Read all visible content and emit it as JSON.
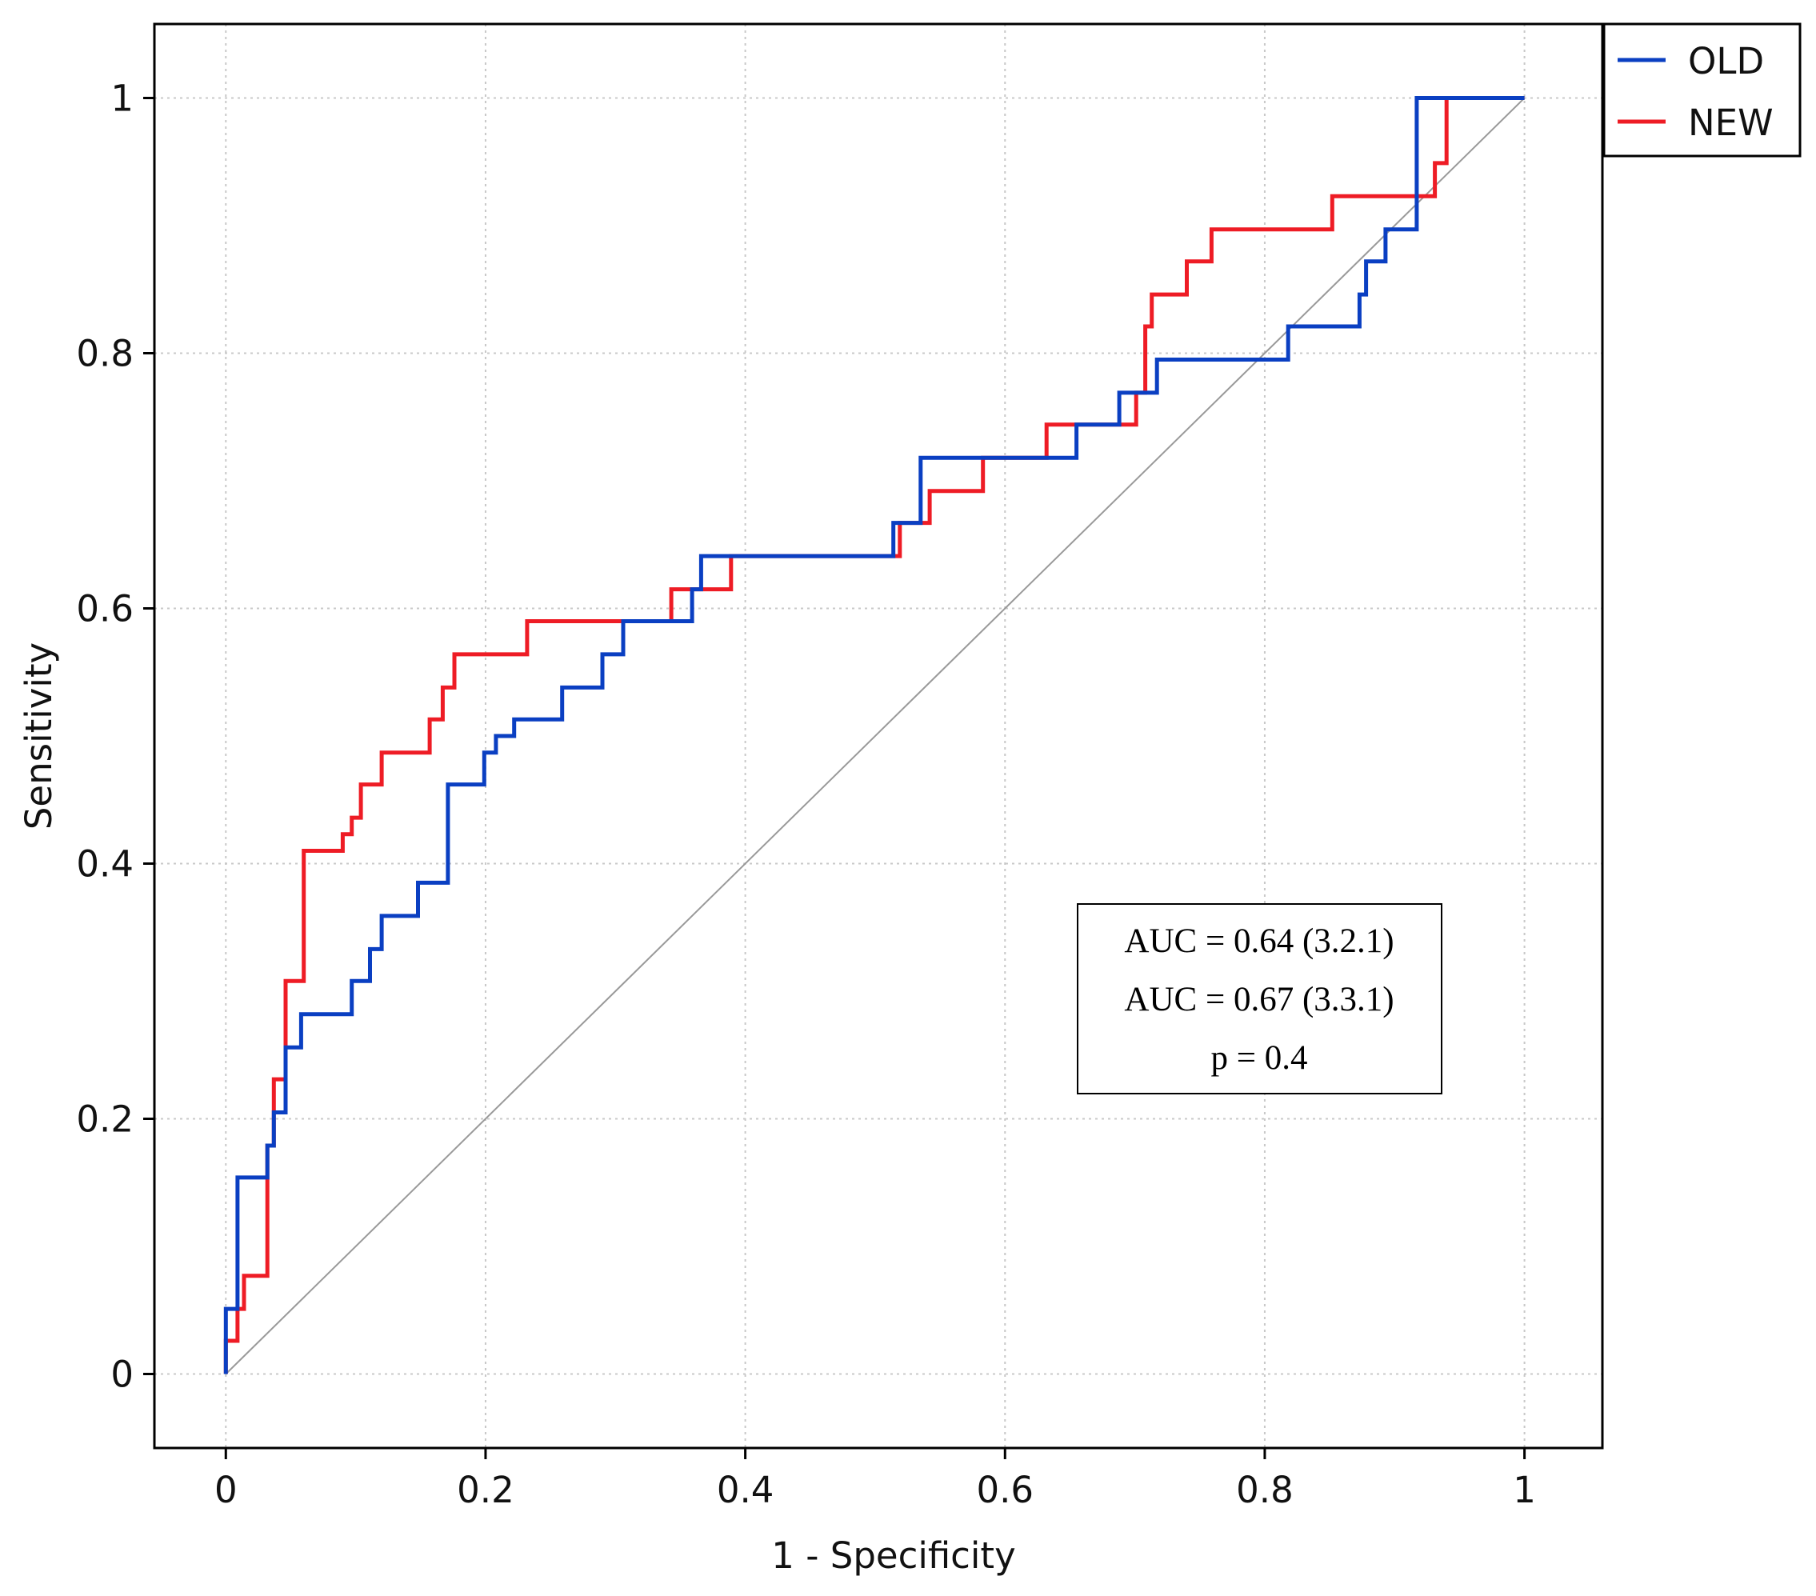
{
  "chart_data": {
    "type": "line",
    "title": "",
    "xlabel": "1 - Specificity",
    "ylabel": "Sensitivity",
    "xlim": [
      -0.055,
      1.06
    ],
    "ylim": [
      -0.058,
      1.058
    ],
    "xticks": [
      0,
      0.2,
      0.4,
      0.6,
      0.8,
      1
    ],
    "yticks": [
      0,
      0.2,
      0.4,
      0.6,
      0.8,
      1
    ],
    "xtick_labels": [
      "0",
      "0.2",
      "0.4",
      "0.6",
      "0.8",
      "1"
    ],
    "ytick_labels": [
      "0",
      "0.2",
      "0.4",
      "0.6",
      "0.8",
      "1"
    ],
    "grid": true,
    "legend_position": "outside-top-right",
    "series": [
      {
        "name": "OLD",
        "color": "#0a3fc2",
        "points": [
          [
            0,
            0
          ],
          [
            0,
            0.051
          ],
          [
            0.009,
            0.051
          ],
          [
            0.009,
            0.154
          ],
          [
            0.032,
            0.154
          ],
          [
            0.032,
            0.179
          ],
          [
            0.037,
            0.179
          ],
          [
            0.037,
            0.205
          ],
          [
            0.046,
            0.205
          ],
          [
            0.046,
            0.256
          ],
          [
            0.058,
            0.256
          ],
          [
            0.058,
            0.282
          ],
          [
            0.097,
            0.282
          ],
          [
            0.097,
            0.308
          ],
          [
            0.111,
            0.308
          ],
          [
            0.111,
            0.333
          ],
          [
            0.12,
            0.333
          ],
          [
            0.12,
            0.359
          ],
          [
            0.148,
            0.359
          ],
          [
            0.148,
            0.385
          ],
          [
            0.171,
            0.385
          ],
          [
            0.171,
            0.462
          ],
          [
            0.199,
            0.462
          ],
          [
            0.199,
            0.487
          ],
          [
            0.208,
            0.487
          ],
          [
            0.208,
            0.5
          ],
          [
            0.222,
            0.5
          ],
          [
            0.222,
            0.513
          ],
          [
            0.259,
            0.513
          ],
          [
            0.259,
            0.538
          ],
          [
            0.29,
            0.538
          ],
          [
            0.29,
            0.564
          ],
          [
            0.306,
            0.564
          ],
          [
            0.306,
            0.59
          ],
          [
            0.359,
            0.59
          ],
          [
            0.359,
            0.615
          ],
          [
            0.366,
            0.615
          ],
          [
            0.366,
            0.641
          ],
          [
            0.514,
            0.641
          ],
          [
            0.514,
            0.667
          ],
          [
            0.535,
            0.667
          ],
          [
            0.535,
            0.718
          ],
          [
            0.655,
            0.718
          ],
          [
            0.655,
            0.744
          ],
          [
            0.688,
            0.744
          ],
          [
            0.688,
            0.769
          ],
          [
            0.717,
            0.769
          ],
          [
            0.717,
            0.795
          ],
          [
            0.818,
            0.795
          ],
          [
            0.818,
            0.821
          ],
          [
            0.873,
            0.821
          ],
          [
            0.873,
            0.846
          ],
          [
            0.878,
            0.846
          ],
          [
            0.878,
            0.872
          ],
          [
            0.893,
            0.872
          ],
          [
            0.893,
            0.897
          ],
          [
            0.917,
            0.897
          ],
          [
            0.917,
            1
          ],
          [
            1,
            1
          ]
        ]
      },
      {
        "name": "NEW",
        "color": "#ee1c25",
        "points": [
          [
            0,
            0
          ],
          [
            0,
            0.026
          ],
          [
            0.009,
            0.026
          ],
          [
            0.009,
            0.051
          ],
          [
            0.014,
            0.051
          ],
          [
            0.014,
            0.077
          ],
          [
            0.032,
            0.077
          ],
          [
            0.032,
            0.179
          ],
          [
            0.037,
            0.179
          ],
          [
            0.037,
            0.231
          ],
          [
            0.046,
            0.231
          ],
          [
            0.046,
            0.308
          ],
          [
            0.06,
            0.308
          ],
          [
            0.06,
            0.41
          ],
          [
            0.09,
            0.41
          ],
          [
            0.09,
            0.423
          ],
          [
            0.097,
            0.423
          ],
          [
            0.097,
            0.436
          ],
          [
            0.104,
            0.436
          ],
          [
            0.104,
            0.462
          ],
          [
            0.12,
            0.462
          ],
          [
            0.12,
            0.487
          ],
          [
            0.157,
            0.487
          ],
          [
            0.157,
            0.513
          ],
          [
            0.167,
            0.513
          ],
          [
            0.167,
            0.538
          ],
          [
            0.176,
            0.538
          ],
          [
            0.176,
            0.564
          ],
          [
            0.232,
            0.564
          ],
          [
            0.232,
            0.59
          ],
          [
            0.343,
            0.59
          ],
          [
            0.343,
            0.615
          ],
          [
            0.389,
            0.615
          ],
          [
            0.389,
            0.641
          ],
          [
            0.519,
            0.641
          ],
          [
            0.519,
            0.667
          ],
          [
            0.542,
            0.667
          ],
          [
            0.542,
            0.692
          ],
          [
            0.583,
            0.692
          ],
          [
            0.583,
            0.718
          ],
          [
            0.632,
            0.718
          ],
          [
            0.632,
            0.744
          ],
          [
            0.701,
            0.744
          ],
          [
            0.701,
            0.769
          ],
          [
            0.708,
            0.769
          ],
          [
            0.708,
            0.821
          ],
          [
            0.713,
            0.821
          ],
          [
            0.713,
            0.846
          ],
          [
            0.74,
            0.846
          ],
          [
            0.74,
            0.872
          ],
          [
            0.759,
            0.872
          ],
          [
            0.759,
            0.897
          ],
          [
            0.852,
            0.897
          ],
          [
            0.852,
            0.923
          ],
          [
            0.931,
            0.923
          ],
          [
            0.931,
            0.949
          ],
          [
            0.94,
            0.949
          ],
          [
            0.94,
            1
          ],
          [
            1,
            1
          ]
        ]
      },
      {
        "name": "reference",
        "color": "#999999",
        "points": [
          [
            0,
            0
          ],
          [
            1,
            1
          ]
        ]
      }
    ],
    "legend": [
      "OLD",
      "NEW"
    ],
    "annotations": [
      "AUC = 0.64 (3.2.1)",
      "AUC = 0.67 (3.3.1)",
      "p = 0.4"
    ]
  }
}
